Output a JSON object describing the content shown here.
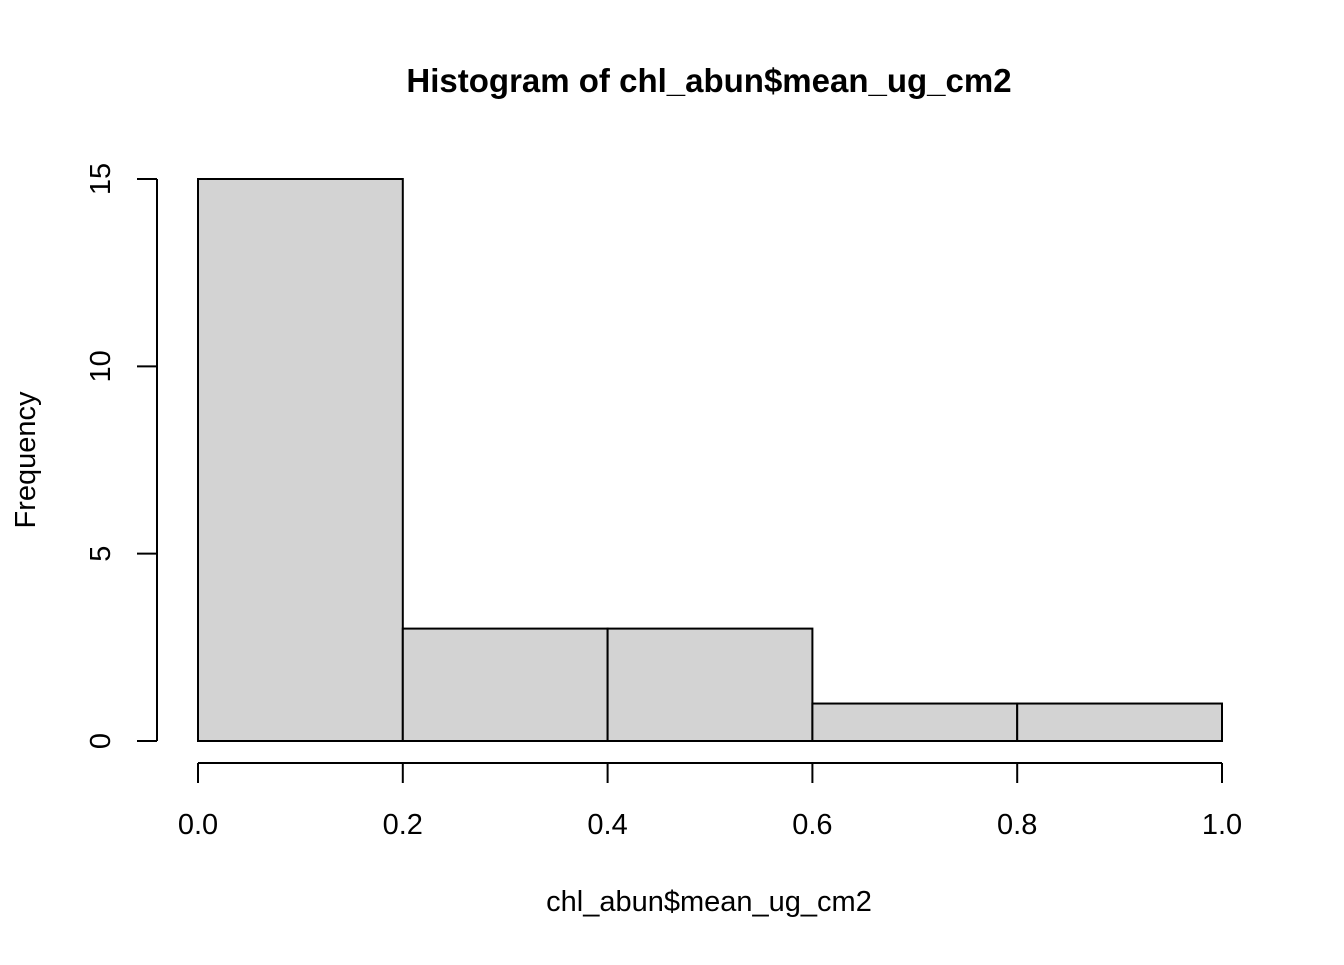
{
  "chart_data": {
    "type": "bar",
    "title": "Histogram of chl_abun$mean_ug_cm2",
    "xlabel": "chl_abun$mean_ug_cm2",
    "ylabel": "Frequency",
    "bins": [
      {
        "start": 0.0,
        "end": 0.2,
        "count": 15
      },
      {
        "start": 0.2,
        "end": 0.4,
        "count": 3
      },
      {
        "start": 0.4,
        "end": 0.6,
        "count": 3
      },
      {
        "start": 0.6,
        "end": 0.8,
        "count": 1
      },
      {
        "start": 0.8,
        "end": 1.0,
        "count": 1
      }
    ],
    "xlim": [
      0.0,
      1.0
    ],
    "ylim": [
      0,
      15
    ],
    "x_ticks": [
      "0.0",
      "0.2",
      "0.4",
      "0.6",
      "0.8",
      "1.0"
    ],
    "y_ticks": [
      "0",
      "5",
      "10",
      "15"
    ],
    "bar_color": "#d3d3d3",
    "grid": false,
    "legend": "none"
  }
}
